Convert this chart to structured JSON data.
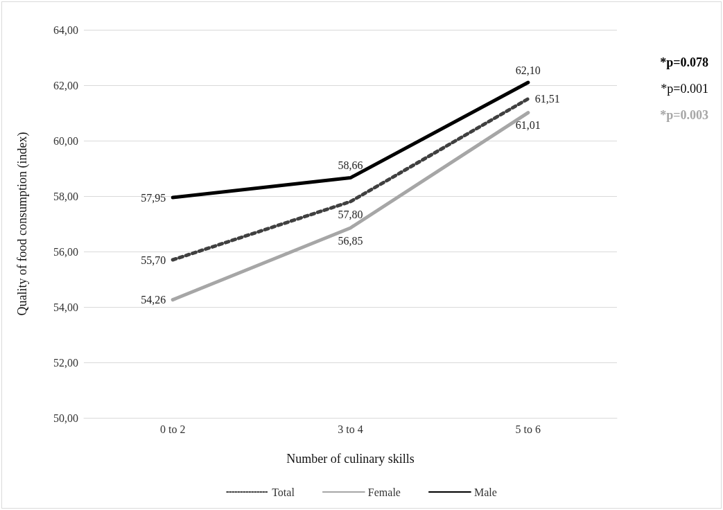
{
  "chart_data": {
    "type": "line",
    "xlabel": "Number of culinary skills",
    "ylabel": "Quality of food consumption (index)",
    "categories": [
      "0 to 2",
      "3 to 4",
      "5 to 6"
    ],
    "series": [
      {
        "name": "Total",
        "color": "#404040",
        "line_style": "dotted",
        "values": [
          55.7,
          57.8,
          61.51
        ],
        "value_labels": [
          "55,70",
          "57,80",
          "61,51"
        ]
      },
      {
        "name": "Female",
        "color": "#a6a6a6",
        "line_style": "solid",
        "values": [
          54.26,
          56.85,
          61.01
        ],
        "value_labels": [
          "54,26",
          "56,85",
          "61,01"
        ]
      },
      {
        "name": "Male",
        "color": "#000000",
        "line_style": "solid",
        "values": [
          57.95,
          58.66,
          62.1
        ],
        "value_labels": [
          "57,95",
          "58,66",
          "62,10"
        ]
      }
    ],
    "ylim": [
      50,
      64
    ],
    "yticks": [
      {
        "value": 50,
        "label": "50,00"
      },
      {
        "value": 52,
        "label": "52,00"
      },
      {
        "value": 54,
        "label": "54,00"
      },
      {
        "value": 56,
        "label": "56,00"
      },
      {
        "value": 58,
        "label": "58,00"
      },
      {
        "value": 60,
        "label": "60,00"
      },
      {
        "value": 62,
        "label": "62,00"
      },
      {
        "value": 64,
        "label": "64,00"
      }
    ],
    "grid": "y",
    "legend": "bottom",
    "marker": "none",
    "annotations": [
      "*p=0.078",
      "*p=0.001",
      "*p=0.003"
    ]
  }
}
